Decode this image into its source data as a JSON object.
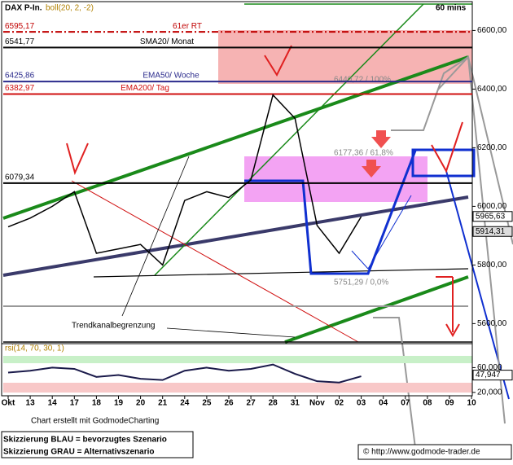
{
  "chart_data": {
    "type": "line",
    "title": "DAX P-In.",
    "indicator": "boll(20, 2, -2)",
    "timeframe": "60 mins",
    "categories": [
      "Okt",
      "13",
      "14",
      "17",
      "18",
      "19",
      "20",
      "21",
      "24",
      "25",
      "26",
      "27",
      "28",
      "31",
      "Nov",
      "02",
      "03",
      "04",
      "07",
      "08",
      "09",
      "10"
    ],
    "color": "#000000",
    "values": [
      5930,
      5960,
      6000,
      6050,
      5840,
      5855,
      5870,
      5800,
      6020,
      6050,
      6030,
      6090,
      6380,
      6300,
      5935,
      5840,
      5965,
      null,
      null,
      null,
      null,
      null
    ],
    "ylim": [
      5540,
      6690
    ],
    "yticks": [
      {
        "value": 5600,
        "label": "5600,00"
      },
      {
        "value": 5800,
        "label": "5800,00"
      },
      {
        "value": 6000,
        "label": "6000,00"
      },
      {
        "value": 6200,
        "label": "6200,00"
      },
      {
        "value": 6400,
        "label": "6400,00"
      },
      {
        "value": 6600,
        "label": "6600,00"
      }
    ],
    "levels": [
      {
        "value": 6595.17,
        "label": "6595,17",
        "name": "61er RT",
        "color": "#c00000"
      },
      {
        "value": 6541.77,
        "label": "6541,77",
        "name": "SMA20/ Monat",
        "color": "#000000"
      },
      {
        "value": 6425.86,
        "label": "6425,86",
        "name": "EMA50/ Woche",
        "color": "#2b2b8c"
      },
      {
        "value": 6382.97,
        "label": "6382,97",
        "name": "EMA200/ Tag",
        "color": "#d01010"
      },
      {
        "value": 6079.34,
        "label": "6079,34",
        "name": null,
        "color": "#000000"
      }
    ],
    "last_labels": [
      {
        "value": 5965.63,
        "label": "5965,63"
      },
      {
        "value": 5914.31,
        "label": "5914,31"
      }
    ],
    "fib_labels": [
      "6440,72 / 100%",
      "6177,36 / 61,8%",
      "5751,29 / 0,0%"
    ],
    "annotations": [
      "Trendkanalbegrenzung",
      "Chart erstellt mit GodmodeCharting"
    ],
    "rsi": {
      "title": "rsi(14, 70, 30, 1)",
      "color": "#1a1a4a",
      "values": [
        52,
        55,
        60,
        58,
        45,
        48,
        42,
        40,
        55,
        60,
        55,
        58,
        65,
        50,
        38,
        36,
        46,
        null,
        null,
        null,
        null,
        null
      ],
      "ylim": [
        8,
        100
      ],
      "yticks": [
        {
          "value": 60,
          "label": "60,000"
        },
        {
          "value": 20,
          "label": "20,000"
        }
      ],
      "last": {
        "value": 47.947,
        "label": "47,947"
      }
    },
    "footer": {
      "legend": [
        "Skizzierung BLAU = bevorzugtes Szenario",
        "Skizzierung GRAU = Alternativszenario"
      ],
      "copyright": "© http://www.godmode-trader.de"
    }
  }
}
